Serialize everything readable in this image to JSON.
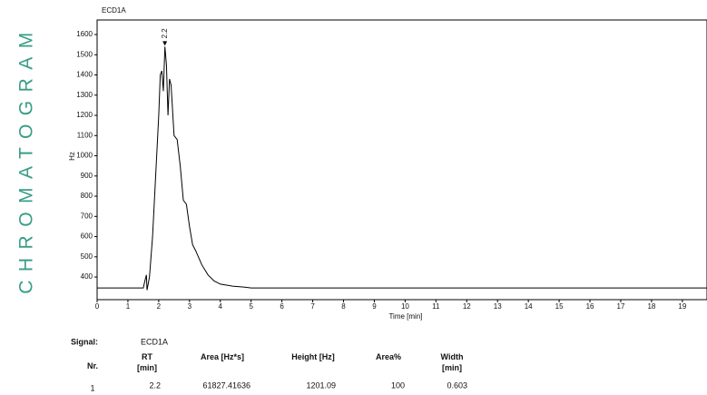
{
  "side_title": "CHROMATOGRAM",
  "chart_data": {
    "type": "line",
    "title": "ECD1A",
    "x_label": "Time [min]",
    "y_label": "Hz",
    "xlim": [
      0,
      19.8
    ],
    "ylim": [
      288,
      1672
    ],
    "xticks": [
      0,
      1,
      2,
      3,
      4,
      5,
      6,
      7,
      8,
      9,
      10,
      11,
      12,
      13,
      14,
      15,
      16,
      17,
      18,
      19
    ],
    "yticks": [
      400,
      500,
      600,
      700,
      800,
      900,
      1000,
      1100,
      1200,
      1300,
      1400,
      1500,
      1600
    ],
    "series": [
      {
        "color": "#000000",
        "x": [
          0,
          1.5,
          1.55,
          1.6,
          1.62,
          1.7,
          1.8,
          1.9,
          2.0,
          2.05,
          2.1,
          2.15,
          2.2,
          2.25,
          2.3,
          2.35,
          2.4,
          2.5,
          2.6,
          2.7,
          2.8,
          2.9,
          3.0,
          3.1,
          3.2,
          3.4,
          3.6,
          3.8,
          4.0,
          4.4,
          4.8,
          5.0,
          19.8
        ],
        "values": [
          346,
          346,
          380,
          410,
          335,
          400,
          600,
          900,
          1200,
          1400,
          1420,
          1320,
          1540,
          1450,
          1200,
          1380,
          1350,
          1100,
          1080,
          950,
          780,
          760,
          650,
          560,
          530,
          460,
          410,
          380,
          365,
          355,
          350,
          346,
          346
        ]
      }
    ],
    "annotations": [
      {
        "x": 2.2,
        "y": 1540,
        "text": "2.2"
      }
    ]
  },
  "table": {
    "signal_label": "Signal:",
    "signal": "ECD1A",
    "headers": [
      [
        "Nr."
      ],
      [
        "RT",
        "[min]"
      ],
      [
        "Area [Hz*s]"
      ],
      [
        "Height [Hz]"
      ],
      [
        "Area%"
      ],
      [
        "Width",
        "[min]"
      ]
    ],
    "rows": [
      [
        "1",
        "2.2",
        "61827.41636",
        "1201.09",
        "100",
        "0.603"
      ]
    ]
  }
}
